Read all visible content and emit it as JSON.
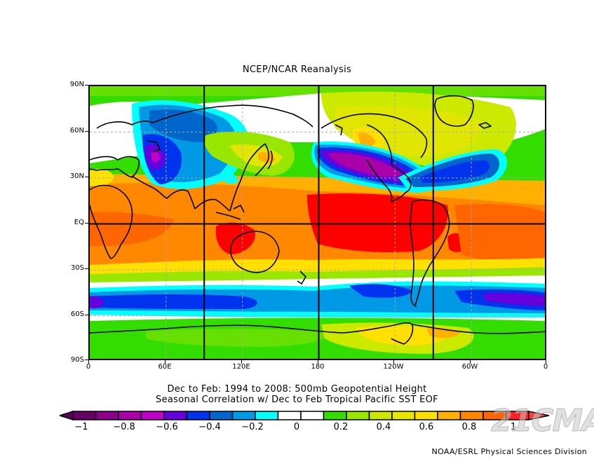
{
  "chart_data": {
    "type": "heatmap",
    "subtype": "global-contour-map",
    "title": "NCEP/NCAR Reanalysis",
    "subtitle_lines": [
      "Dec to Feb: 1994 to 2008: 500mb Geopotential Height",
      "Seasonal Correlation w/ Dec to Feb Tropical Pacific SST EOF"
    ],
    "credit": "NOAA/ESRL Physical Sciences Division",
    "watermark": "21CMA",
    "projection": "cylindrical equidistant",
    "x_axis": {
      "ticks": [
        "0",
        "60E",
        "120E",
        "180",
        "120W",
        "60W",
        "0"
      ],
      "range": [
        0,
        360
      ]
    },
    "y_axis": {
      "ticks": [
        "90S",
        "60S",
        "30S",
        "EQ",
        "30N",
        "60N",
        "90N"
      ],
      "range": [
        -90,
        90
      ]
    },
    "grid": {
      "bold_lines_lon": [
        "90E",
        "180",
        "90W"
      ],
      "bold_lines_lat": [
        "EQ"
      ],
      "dashed_grid": true
    },
    "colorbar": {
      "position": "bottom",
      "min": -1,
      "max": 1,
      "step": 0.1,
      "extend": "both",
      "tick_labels": [
        "-1",
        "-0.8",
        "-0.6",
        "-0.4",
        "-0.2",
        "0",
        "0.2",
        "0.4",
        "0.6",
        "0.8",
        "1"
      ],
      "colors": [
        "#5a0060",
        "#660066",
        "#8a008a",
        "#aa00aa",
        "#c000c8",
        "#6600dd",
        "#0033ee",
        "#0066cc",
        "#0099e6",
        "#00ffff",
        "#ffffff",
        "#ffffff",
        "#33dd00",
        "#99e600",
        "#cce600",
        "#e6e600",
        "#ffe000",
        "#ffb000",
        "#ff8800",
        "#ff6600",
        "#ff2222",
        "#ff0000"
      ]
    },
    "features": [
      {
        "region": "Tropics (30S-30N) all longitudes",
        "value_range": [
          0.6,
          0.9
        ],
        "color": "orange/red"
      },
      {
        "region": "Central-east tropical Pacific (~180-100W, EQ)",
        "value": 0.9,
        "color": "red"
      },
      {
        "region": "Maritime continent / N Australia",
        "value": 0.9,
        "color": "red"
      },
      {
        "region": "North Pacific / Aleutian (~40N, 170W-100W)",
        "value_range": [
          -0.8,
          -0.6
        ],
        "color": "purple"
      },
      {
        "region": "Southeastern US / N Atlantic (~35N, 80W-40W)",
        "value_range": [
          -0.5,
          -0.3
        ],
        "color": "blue"
      },
      {
        "region": "Central Asia (~40N, 50E-70E)",
        "value_range": [
          -0.7,
          -0.5
        ],
        "color": "blue/purple"
      },
      {
        "region": "Southern midlatitudes (~45S) all longitudes",
        "value_range": [
          -0.6,
          -0.3
        ],
        "color": "blue"
      },
      {
        "region": "Canada / Arctic (~60N, 120W-80W)",
        "value_range": [
          0.3,
          0.6
        ],
        "color": "yellow"
      },
      {
        "region": "Japan / NW Pacific (~40N, 140E)",
        "value_range": [
          0.3,
          0.5
        ],
        "color": "yellow-green"
      },
      {
        "region": "Antarctic (~65S-90S)",
        "value_range": [
          0.1,
          0.6
        ],
        "color": "green/yellow"
      }
    ]
  },
  "labels": {
    "title": "NCEP/NCAR Reanalysis",
    "subtitle1": "Dec to Feb: 1994 to 2008: 500mb Geopotential Height",
    "subtitle2": "Seasonal Correlation w/ Dec to Feb Tropical Pacific SST EOF",
    "credit": "NOAA/ESRL Physical Sciences Division",
    "watermark": "21CMA",
    "y": [
      "90N",
      "60N",
      "30N",
      "EQ",
      "30S",
      "60S",
      "90S"
    ],
    "x": [
      "0",
      "60E",
      "120E",
      "180",
      "120W",
      "60W",
      "0"
    ],
    "cb": [
      "−1",
      "−0.8",
      "−0.6",
      "−0.4",
      "−0.2",
      "0",
      "0.2",
      "0.4",
      "0.6",
      "0.8",
      "1"
    ]
  }
}
